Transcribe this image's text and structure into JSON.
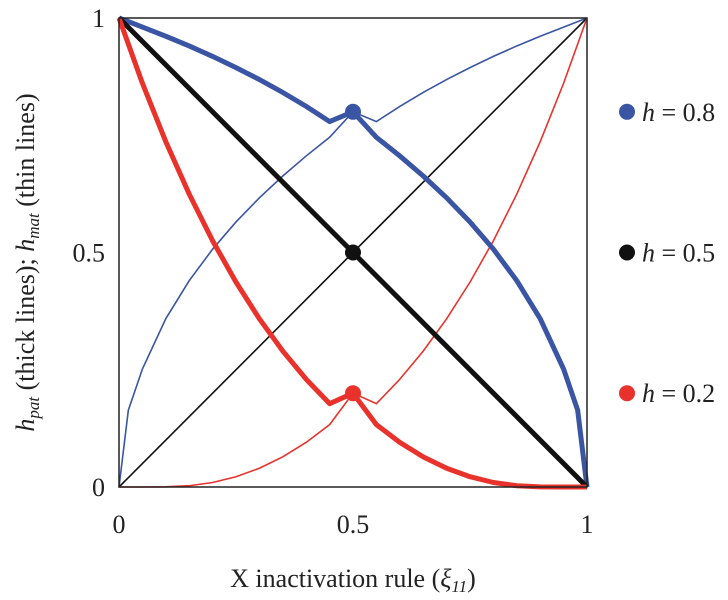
{
  "chart_data": {
    "type": "line",
    "xlabel": {
      "text": "X inactivation rule (",
      "symbol": "ξ",
      "subscript": "11",
      "close": ")"
    },
    "ylabel": {
      "thick_symbol": "h",
      "thick_sub": "pat",
      "thick_text": " (thick lines); ",
      "thin_symbol": "h",
      "thin_sub": "mat",
      "thin_text": " (thin lines)"
    },
    "xlim": [
      0,
      1
    ],
    "ylim": [
      0,
      1
    ],
    "x_ticks": [
      {
        "value": 0,
        "label": "0"
      },
      {
        "value": 0.5,
        "label": "0.5"
      },
      {
        "value": 1,
        "label": "1"
      }
    ],
    "y_ticks": [
      {
        "value": 0,
        "label": "0"
      },
      {
        "value": 0.5,
        "label": "0.5"
      },
      {
        "value": 1,
        "label": "1"
      }
    ],
    "legend_position": "right",
    "series": [
      {
        "h": 0.8,
        "legend_symbol": "h",
        "legend_value": " = 0.8",
        "color": "#3a55a4",
        "midpoint": [
          0.5,
          0.8
        ],
        "thick_x": [
          0,
          0.05,
          0.1,
          0.15,
          0.2,
          0.25,
          0.3,
          0.35,
          0.4,
          0.45,
          0.5,
          0.55,
          0.6,
          0.65,
          0.7,
          0.75,
          0.8,
          0.85,
          0.9,
          0.95,
          0.98,
          1.0
        ],
        "thick_y": [
          1.0,
          0.9806,
          0.9611,
          0.9404,
          0.9181,
          0.8942,
          0.8688,
          0.8412,
          0.8115,
          0.7792,
          0.8,
          0.7456,
          0.7059,
          0.6631,
          0.6166,
          0.5651,
          0.5071,
          0.4399,
          0.3589,
          0.2515,
          0.164,
          0.0
        ],
        "thin_x": [
          0,
          0.02,
          0.05,
          0.1,
          0.15,
          0.2,
          0.25,
          0.3,
          0.35,
          0.4,
          0.45,
          0.5,
          0.55,
          0.6,
          0.65,
          0.7,
          0.75,
          0.8,
          0.85,
          0.9,
          0.95,
          1.0
        ],
        "thin_y": [
          0.0,
          0.164,
          0.2515,
          0.3589,
          0.4399,
          0.5071,
          0.5651,
          0.6166,
          0.6631,
          0.7059,
          0.7456,
          0.8,
          0.7792,
          0.8115,
          0.8412,
          0.8688,
          0.8942,
          0.9181,
          0.9404,
          0.9611,
          0.9806,
          1.0
        ]
      },
      {
        "h": 0.5,
        "legend_symbol": "h",
        "legend_value": " = 0.5",
        "color": "#111111",
        "midpoint": [
          0.5,
          0.5
        ],
        "thick_x": [
          0,
          1
        ],
        "thick_y": [
          1,
          0
        ],
        "thin_x": [
          0,
          1
        ],
        "thin_y": [
          0,
          1
        ]
      },
      {
        "h": 0.2,
        "legend_symbol": "h",
        "legend_value": " = 0.2",
        "color": "#e8322b",
        "midpoint": [
          0.5,
          0.2
        ],
        "thick_x": [
          0,
          0.05,
          0.1,
          0.15,
          0.2,
          0.25,
          0.3,
          0.35,
          0.4,
          0.45,
          0.5,
          0.55,
          0.6,
          0.65,
          0.7,
          0.75,
          0.8,
          0.85,
          0.9,
          0.95,
          1.0
        ],
        "thick_y": [
          1.0,
          0.8609,
          0.7362,
          0.6246,
          0.5251,
          0.4368,
          0.3586,
          0.2898,
          0.2297,
          0.1777,
          0.2,
          0.133,
          0.0952,
          0.0643,
          0.04,
          0.0219,
          0.0096,
          0.0027,
          0.0003,
          0.0,
          0.0
        ],
        "thin_x": [
          0,
          0.05,
          0.1,
          0.15,
          0.2,
          0.25,
          0.3,
          0.35,
          0.4,
          0.45,
          0.5,
          0.55,
          0.6,
          0.65,
          0.7,
          0.75,
          0.8,
          0.85,
          0.9,
          0.95,
          1.0
        ],
        "thin_y": [
          0.0,
          0.0,
          0.0003,
          0.0027,
          0.0096,
          0.0219,
          0.04,
          0.0643,
          0.0952,
          0.133,
          0.2,
          0.1777,
          0.2297,
          0.2898,
          0.3586,
          0.4368,
          0.5251,
          0.6246,
          0.7362,
          0.8609,
          1.0
        ]
      }
    ]
  }
}
